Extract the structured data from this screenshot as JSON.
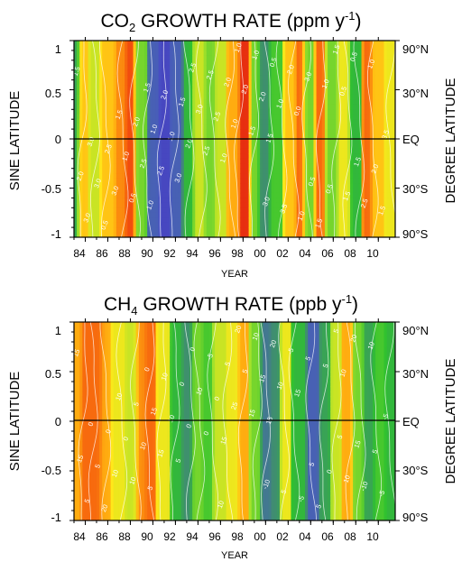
{
  "colors": {
    "scale": [
      "#3a0ea8",
      "#4a55c6",
      "#3f8f6e",
      "#2fc12f",
      "#a5e22b",
      "#ffe81a",
      "#ffac10",
      "#f55a0d",
      "#dd1212"
    ],
    "contour": "#ffffff",
    "axis": "#000000"
  },
  "chart_data": [
    {
      "type": "heatmap",
      "title": {
        "main": "CO",
        "sub": "2",
        "tail": " GROWTH RATE (ppm y",
        "sup": "-1",
        "end": ")"
      },
      "xlabel": "YEAR",
      "ylabel": "SINE LATITUDE",
      "ylabel_right": "DEGREE LATITUDE",
      "x_ticks": [
        "84",
        "86",
        "88",
        "90",
        "92",
        "94",
        "96",
        "98",
        "00",
        "02",
        "04",
        "06",
        "08",
        "10"
      ],
      "x_tick_years": [
        1984,
        1986,
        1988,
        1990,
        1992,
        1994,
        1996,
        1998,
        2000,
        2002,
        2004,
        2006,
        2008,
        2010
      ],
      "xlim": [
        1983.0,
        2011.5
      ],
      "y_ticks": [
        "-1",
        "-0.5",
        "0",
        "0.5",
        "1"
      ],
      "y_tick_values": [
        -1,
        -0.5,
        0,
        0.5,
        1
      ],
      "ylim": [
        -1,
        1
      ],
      "right_ticks": [
        "90°S",
        "30°S",
        "EQ",
        "30°N",
        "90°N"
      ],
      "equator_line": true,
      "contour_labels": [
        "1.5",
        "1.5",
        "1.0",
        "0.5",
        "1.0",
        "0.5",
        "0.0",
        "3.0",
        "1.0",
        "1.5",
        "0.5",
        "1.0",
        "2.5",
        "3.0",
        "1.0",
        "2.5",
        "0.5",
        "1.0",
        "3.0",
        "3.0",
        "2.0",
        "1.5",
        "2.0",
        "2.5",
        "1.5",
        "2.5",
        "3.0",
        "2.0",
        "1.0",
        "2.5",
        "2.0",
        "1.0",
        "1.5",
        "3.0",
        "2.0",
        "0.5",
        "1.0",
        "1.5",
        "2.0",
        "2.5",
        "1.0",
        "1.5",
        "2.0",
        "1.0",
        "2.0",
        "0.5",
        "2.5",
        "3.0",
        "3.5",
        "2.0",
        "1.5",
        "1.0",
        "1.5",
        "0.5",
        "2.5",
        "3.5",
        "3.0",
        "1.5"
      ]
    },
    {
      "type": "heatmap",
      "title": {
        "main": "CH",
        "sub": "4",
        "tail": " GROWTH RATE (ppb y",
        "sup": "-1",
        "end": ")"
      },
      "xlabel": "YEAR",
      "ylabel": "SINE LATITUDE",
      "ylabel_right": "DEGREE LATITUDE",
      "x_ticks": [
        "84",
        "86",
        "88",
        "90",
        "92",
        "94",
        "96",
        "98",
        "00",
        "02",
        "04",
        "06",
        "08",
        "10"
      ],
      "x_tick_years": [
        1984,
        1986,
        1988,
        1990,
        1992,
        1994,
        1996,
        1998,
        2000,
        2002,
        2004,
        2006,
        2008,
        2010
      ],
      "xlim": [
        1983.0,
        2011.5
      ],
      "y_ticks": [
        "-1",
        "-0.5",
        "0",
        "0.5",
        "1"
      ],
      "y_tick_values": [
        -1,
        -0.5,
        0,
        0.5,
        1
      ],
      "ylim": [
        -1,
        1
      ],
      "right_ticks": [
        "90°S",
        "30°S",
        "EQ",
        "30°N",
        "90°N"
      ],
      "equator_line": true,
      "contour_labels": [
        "15",
        "15",
        "5",
        "10",
        "15",
        "20",
        "15",
        "5",
        "10",
        "15",
        "10",
        "5",
        "0",
        "5",
        "10",
        "15",
        "20",
        "25",
        "10",
        "5",
        "0",
        "-5",
        "15",
        "10",
        "5",
        "0",
        "5",
        "-5",
        "10",
        "-10",
        "5",
        "0",
        "5",
        "10",
        "15",
        "20",
        "15",
        "10",
        "5",
        "0",
        "-5",
        "0",
        "5",
        "10",
        "5",
        "0",
        "-5",
        "0",
        "5",
        "10",
        "15",
        "20",
        "10",
        "5",
        "0",
        "-5",
        "-10",
        "0",
        "5",
        "10"
      ]
    }
  ]
}
